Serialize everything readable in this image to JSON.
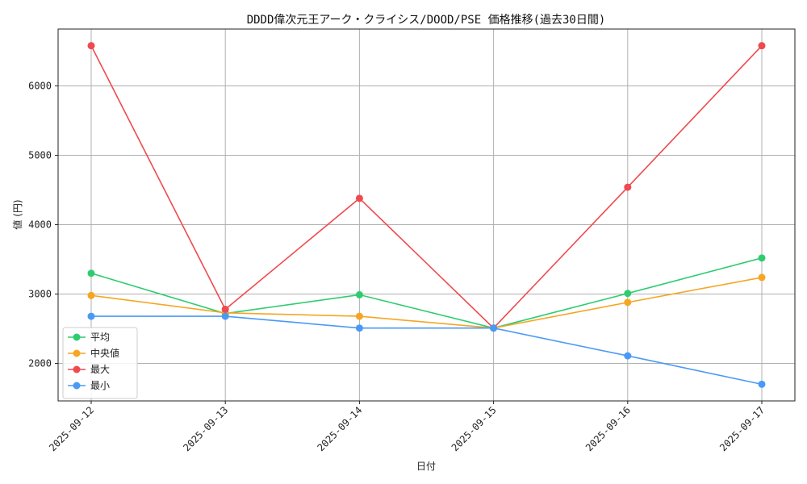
{
  "chart_data": {
    "type": "line",
    "title": "DDDD偉次元王アーク・クライシス/DOOD/PSE 価格推移(過去30日間)",
    "xlabel": "日付",
    "ylabel": "値 (円)",
    "categories": [
      "2025-09-12",
      "2025-09-13",
      "2025-09-14",
      "2025-09-15",
      "2025-09-16",
      "2025-09-17"
    ],
    "ylim": [
      1460,
      6820
    ],
    "yticks": [
      2000,
      3000,
      4000,
      5000,
      6000
    ],
    "grid": true,
    "legend_position": "lower-left",
    "series": [
      {
        "name": "平均",
        "color": "#2ecc71",
        "values": [
          3300,
          2720,
          2990,
          2510,
          3010,
          3520
        ]
      },
      {
        "name": "中央値",
        "color": "#f5a623",
        "values": [
          2980,
          2730,
          2680,
          2510,
          2880,
          3240
        ]
      },
      {
        "name": "最大",
        "color": "#f0494f",
        "values": [
          6580,
          2780,
          4380,
          2510,
          4540,
          6580
        ]
      },
      {
        "name": "最小",
        "color": "#4a9af5",
        "values": [
          2680,
          2680,
          2510,
          2510,
          2110,
          1700
        ]
      }
    ]
  }
}
